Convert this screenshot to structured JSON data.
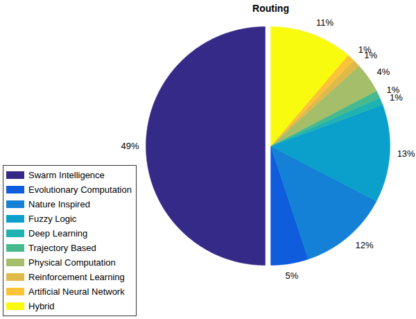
{
  "chart_data": {
    "type": "pie",
    "title": "Routing",
    "categories": [
      "Swarm Intelligence",
      "Evolutionary Computation",
      "Nature Inspired",
      "Fuzzy Logic",
      "Deep Learning",
      "Trajectory Based",
      "Physical Computation",
      "Reinforcement Learning",
      "Artificial Neural Network",
      "Hybrid"
    ],
    "values": [
      49,
      5,
      12,
      13,
      1,
      1,
      4,
      1,
      1,
      11
    ],
    "value_labels": [
      "49%",
      "5%",
      "12%",
      "13%",
      "1%",
      "1%",
      "4%",
      "1%",
      "1%",
      "11%"
    ],
    "colors": [
      "#352a87",
      "#0f5cdd",
      "#1481d6",
      "#0ba0cc",
      "#20b2b0",
      "#46b98f",
      "#a4be6a",
      "#e0b94b",
      "#fbc438",
      "#f9fb0e"
    ],
    "data_labels": true,
    "legend": "lower left"
  }
}
